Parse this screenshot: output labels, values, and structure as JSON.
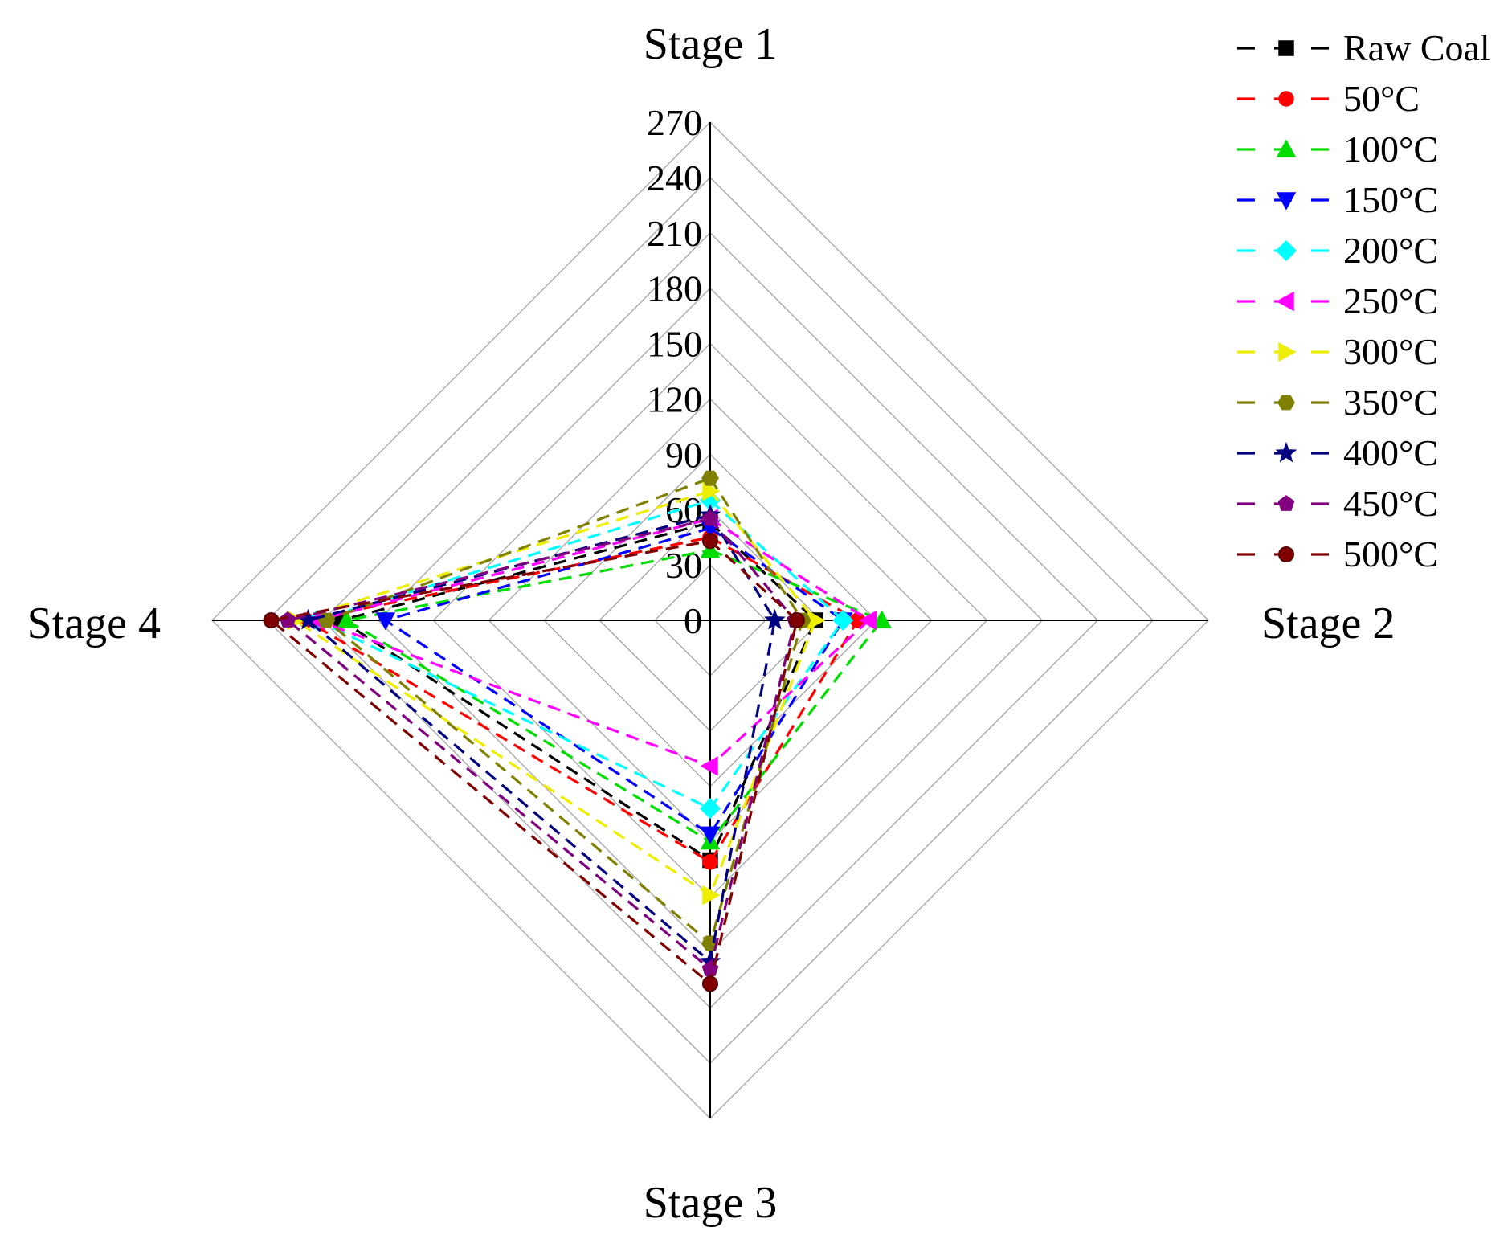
{
  "chart_data": {
    "type": "radar",
    "axes": [
      "Stage 1",
      "Stage 2",
      "Stage 3",
      "Stage 4"
    ],
    "rlim": [
      0,
      270
    ],
    "ticks": [
      "0",
      "30",
      "60",
      "90",
      "120",
      "150",
      "180",
      "210",
      "240",
      "270"
    ],
    "tick_values": [
      0,
      30,
      60,
      90,
      120,
      150,
      180,
      210,
      240,
      270
    ],
    "grid": true,
    "line_style": "dashed",
    "legend_position": "top-right",
    "series": [
      {
        "name": "Raw Coal",
        "color": "#000000",
        "marker": "square",
        "values": [
          53,
          57,
          130,
          200
        ]
      },
      {
        "name": "50°C",
        "color": "#ff0000",
        "marker": "circle",
        "values": [
          45,
          80,
          131,
          219
        ]
      },
      {
        "name": "100°C",
        "color": "#00dd00",
        "marker": "triangle-up",
        "values": [
          38,
          93,
          120,
          197
        ]
      },
      {
        "name": "150°C",
        "color": "#0000ff",
        "marker": "triangle-down",
        "values": [
          50,
          72,
          116,
          176
        ]
      },
      {
        "name": "200°C",
        "color": "#00ffff",
        "marker": "diamond",
        "values": [
          65,
          72,
          102,
          213
        ]
      },
      {
        "name": "250°C",
        "color": "#ff00ff",
        "marker": "triangle-left",
        "values": [
          55,
          86,
          79,
          213
        ]
      },
      {
        "name": "300°C",
        "color": "#eeee00",
        "marker": "triangle-right",
        "values": [
          70,
          57,
          149,
          225
        ]
      },
      {
        "name": "350°C",
        "color": "#808000",
        "marker": "hexagon",
        "values": [
          77,
          50,
          175,
          208
        ]
      },
      {
        "name": "400°C",
        "color": "#000080",
        "marker": "star",
        "values": [
          57,
          35,
          185,
          218
        ]
      },
      {
        "name": "450°C",
        "color": "#800080",
        "marker": "pentagon",
        "values": [
          55,
          46,
          189,
          229
        ]
      },
      {
        "name": "500°C",
        "color": "#800000",
        "marker": "circle-dot",
        "values": [
          43,
          47,
          197,
          238
        ]
      }
    ]
  }
}
